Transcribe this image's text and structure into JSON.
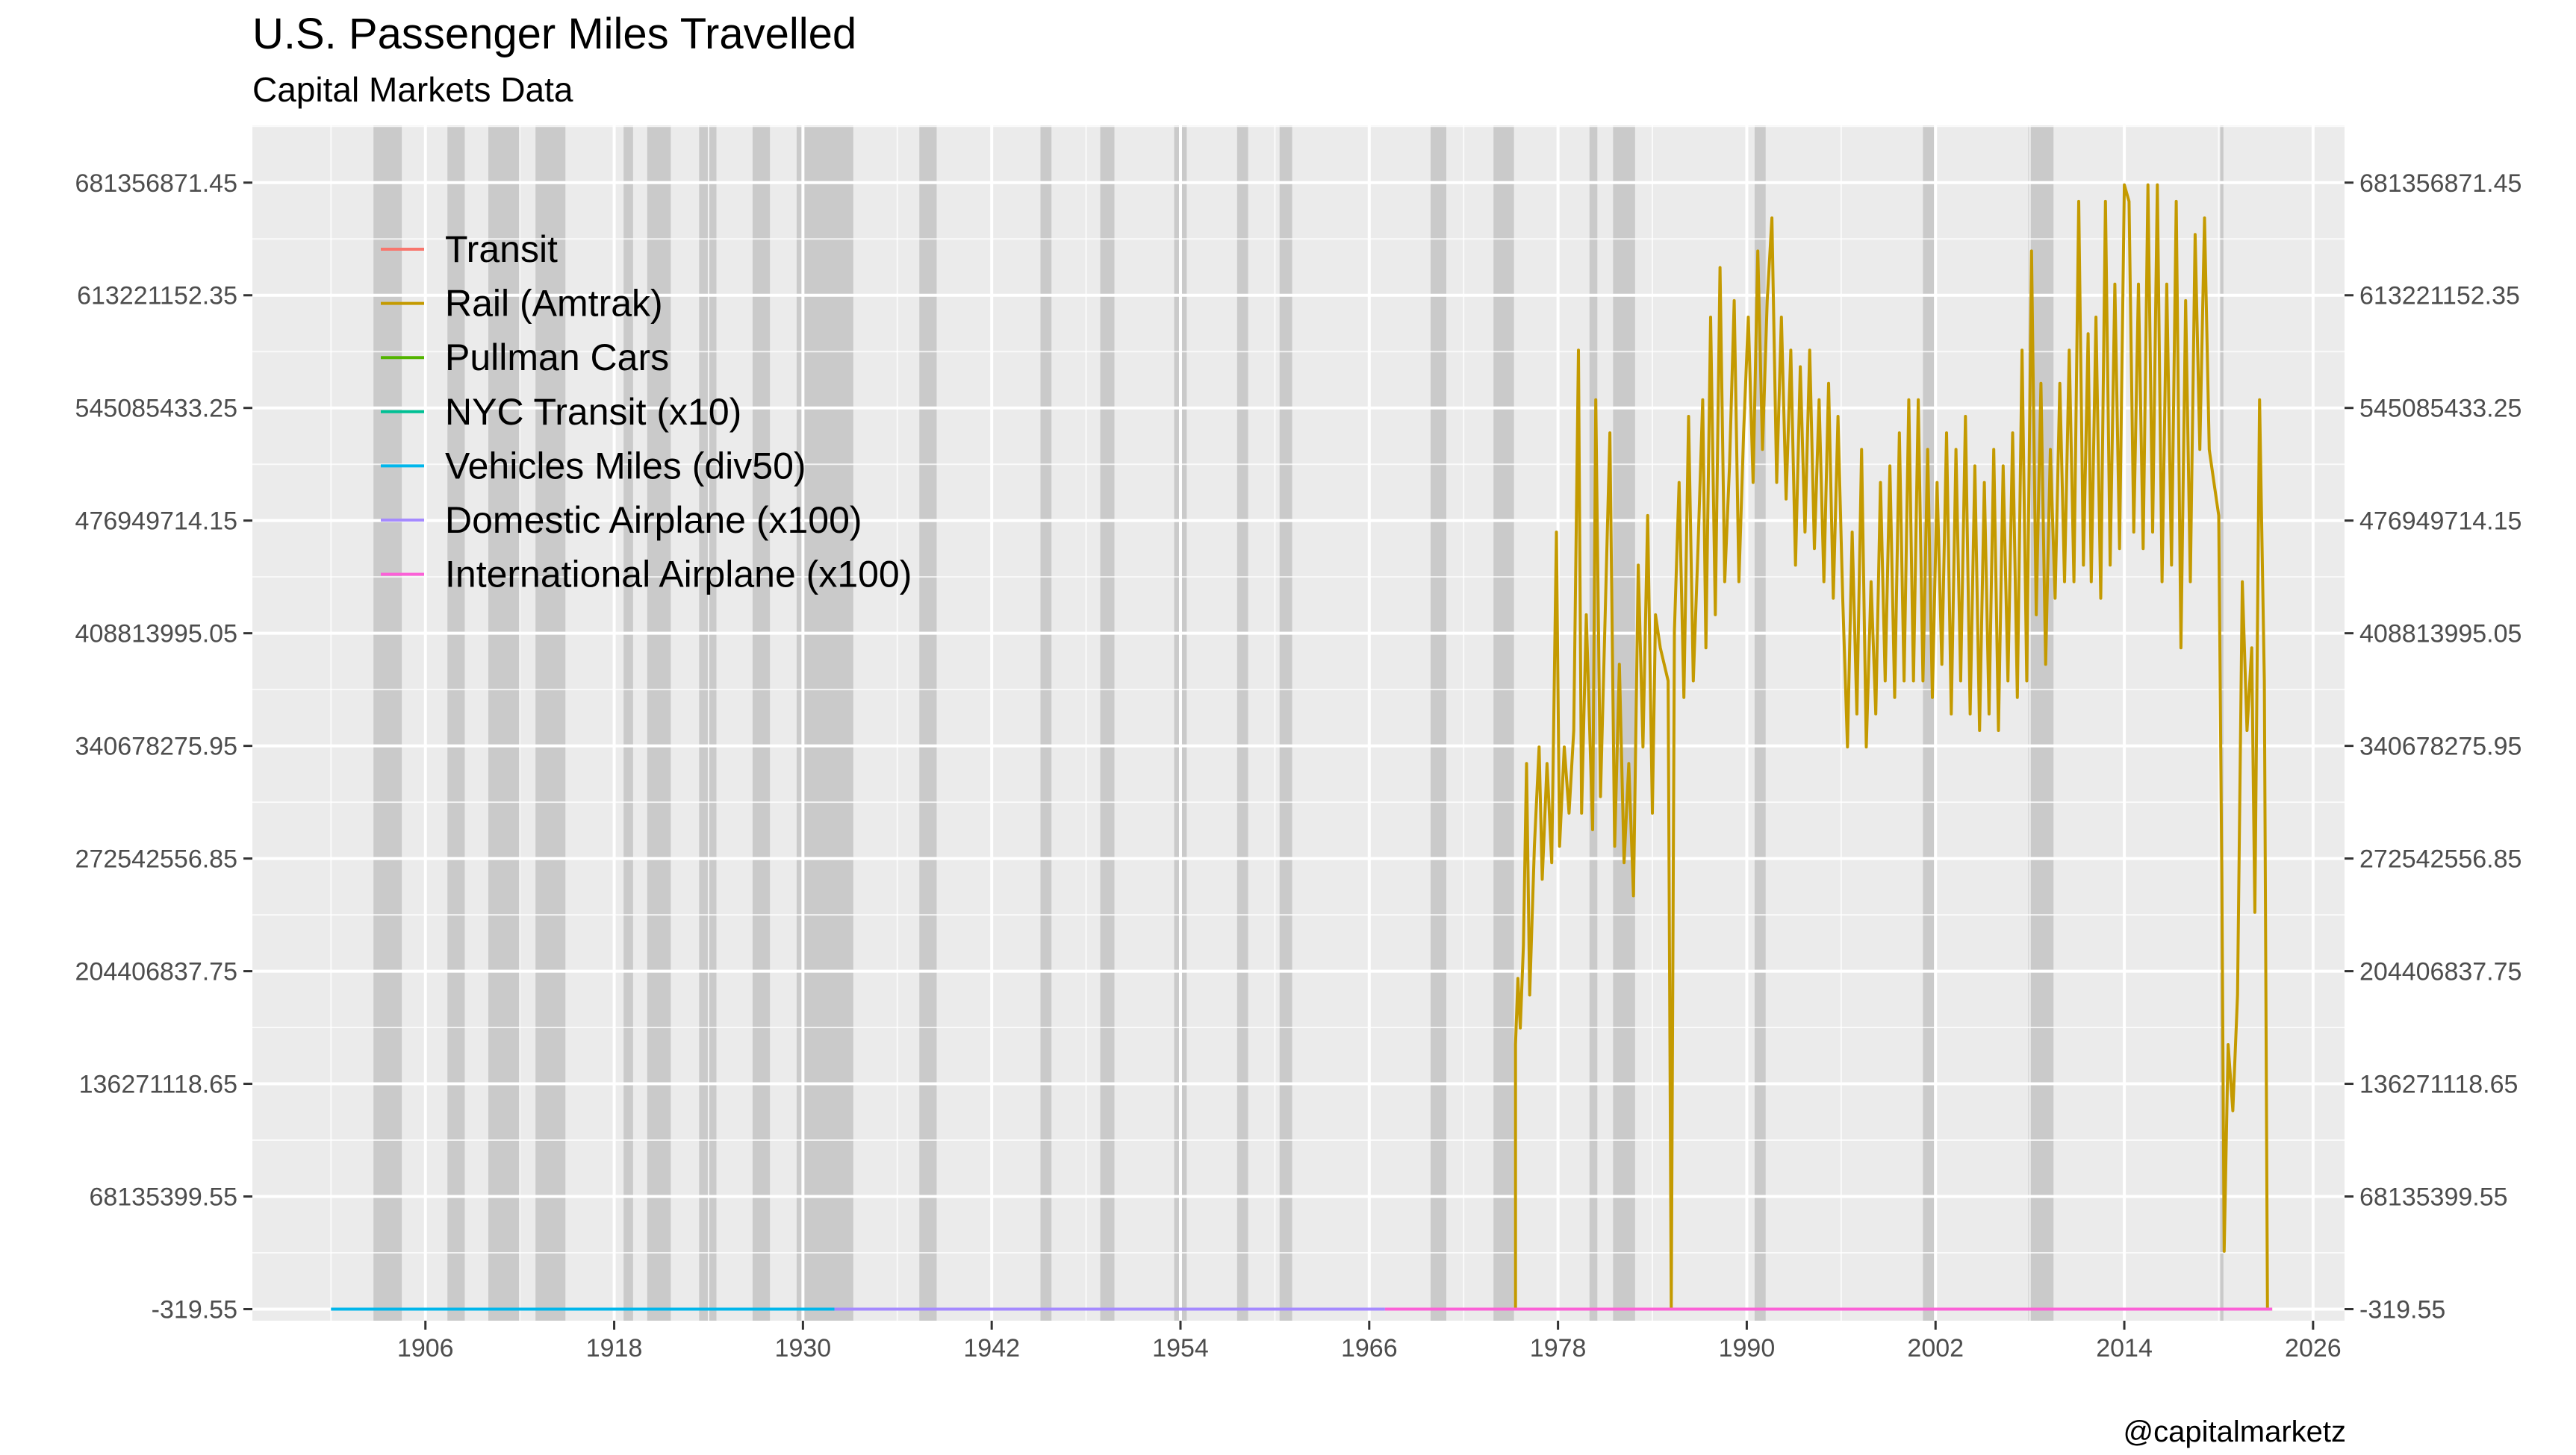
{
  "chart_data": {
    "type": "line",
    "title": "U.S. Passenger Miles Travelled",
    "subtitle": "Capital Markets Data",
    "caption": "@capitalmarketz",
    "xlabel": "",
    "ylabel": "",
    "x_type": "year",
    "xlim": [
      1895,
      2028
    ],
    "ylim": [
      -7000000,
      716000000
    ],
    "x_ticks": [
      1906,
      1918,
      1930,
      1942,
      1954,
      1966,
      1978,
      1990,
      2002,
      2014,
      2026
    ],
    "y_ticks": [
      -319.55,
      68135399.55,
      136271118.65,
      204406837.75,
      272542556.85,
      340678275.95,
      408813995.05,
      476949714.15,
      545085433.25,
      613221152.35,
      681356871.45
    ],
    "y_tick_labels": [
      "-319.55",
      "68135399.55",
      "136271118.65",
      "204406837.75",
      "272542556.85",
      "340678275.95",
      "408813995.05",
      "476949714.15",
      "545085433.25",
      "613221152.35",
      "681356871.45"
    ],
    "secondary_y_axis": true,
    "grid": true,
    "legend_position": "top-left-inside",
    "recession_bands": [
      [
        1902.7,
        1904.5
      ],
      [
        1907.4,
        1908.5
      ],
      [
        1910.0,
        1912.0
      ],
      [
        1913.0,
        1914.9
      ],
      [
        1918.6,
        1919.2
      ],
      [
        1920.1,
        1921.6
      ],
      [
        1923.4,
        1924.5
      ],
      [
        1926.8,
        1927.9
      ],
      [
        1929.6,
        1933.2
      ],
      [
        1937.4,
        1938.5
      ],
      [
        1945.1,
        1945.8
      ],
      [
        1948.9,
        1949.8
      ],
      [
        1953.6,
        1954.4
      ],
      [
        1957.6,
        1958.3
      ],
      [
        1960.3,
        1961.1
      ],
      [
        1969.9,
        1970.9
      ],
      [
        1973.9,
        1975.2
      ],
      [
        1980.0,
        1980.5
      ],
      [
        1981.5,
        1982.9
      ],
      [
        1990.5,
        1991.2
      ],
      [
        2001.2,
        2001.9
      ],
      [
        2007.9,
        2009.5
      ],
      [
        2020.1,
        2020.3
      ]
    ],
    "series": [
      {
        "name": "Transit",
        "color": "#F8766D",
        "points": []
      },
      {
        "name": "Rail (Amtrak)",
        "color": "#C49A00",
        "points": [
          [
            1974.0,
            0
          ],
          [
            1975.3,
            0
          ],
          [
            1975.3,
            160000000
          ],
          [
            1975.45,
            200000000
          ],
          [
            1975.6,
            170000000
          ],
          [
            1975.8,
            220000000
          ],
          [
            1976.0,
            330000000
          ],
          [
            1976.2,
            190000000
          ],
          [
            1976.5,
            280000000
          ],
          [
            1976.8,
            340000000
          ],
          [
            1977.0,
            260000000
          ],
          [
            1977.3,
            330000000
          ],
          [
            1977.6,
            270000000
          ],
          [
            1977.9,
            470000000
          ],
          [
            1978.1,
            280000000
          ],
          [
            1978.4,
            340000000
          ],
          [
            1978.7,
            300000000
          ],
          [
            1979.0,
            350000000
          ],
          [
            1979.3,
            580000000
          ],
          [
            1979.5,
            300000000
          ],
          [
            1979.8,
            420000000
          ],
          [
            1980.2,
            290000000
          ],
          [
            1980.4,
            550000000
          ],
          [
            1980.7,
            310000000
          ],
          [
            1981.0,
            420000000
          ],
          [
            1981.3,
            530000000
          ],
          [
            1981.6,
            280000000
          ],
          [
            1981.9,
            390000000
          ],
          [
            1982.2,
            270000000
          ],
          [
            1982.5,
            330000000
          ],
          [
            1982.8,
            250000000
          ],
          [
            1983.1,
            450000000
          ],
          [
            1983.4,
            340000000
          ],
          [
            1983.7,
            480000000
          ],
          [
            1984.0,
            300000000
          ],
          [
            1984.2,
            420000000
          ],
          [
            1984.5,
            400000000
          ],
          [
            1985.0,
            380000000
          ],
          [
            1985.2,
            0
          ],
          [
            1985.4,
            410000000
          ],
          [
            1985.7,
            500000000
          ],
          [
            1986.0,
            370000000
          ],
          [
            1986.3,
            540000000
          ],
          [
            1986.6,
            380000000
          ],
          [
            1986.9,
            460000000
          ],
          [
            1987.2,
            550000000
          ],
          [
            1987.4,
            400000000
          ],
          [
            1987.7,
            600000000
          ],
          [
            1988.0,
            420000000
          ],
          [
            1988.3,
            630000000
          ],
          [
            1988.6,
            440000000
          ],
          [
            1988.9,
            510000000
          ],
          [
            1989.2,
            610000000
          ],
          [
            1989.5,
            440000000
          ],
          [
            1989.8,
            530000000
          ],
          [
            1990.1,
            600000000
          ],
          [
            1990.4,
            500000000
          ],
          [
            1990.7,
            640000000
          ],
          [
            1991.0,
            520000000
          ],
          [
            1991.3,
            610000000
          ],
          [
            1991.6,
            660000000
          ],
          [
            1991.9,
            500000000
          ],
          [
            1992.2,
            600000000
          ],
          [
            1992.5,
            490000000
          ],
          [
            1992.8,
            580000000
          ],
          [
            1993.1,
            450000000
          ],
          [
            1993.4,
            570000000
          ],
          [
            1993.7,
            470000000
          ],
          [
            1994.0,
            580000000
          ],
          [
            1994.3,
            460000000
          ],
          [
            1994.6,
            550000000
          ],
          [
            1994.9,
            440000000
          ],
          [
            1995.2,
            560000000
          ],
          [
            1995.5,
            430000000
          ],
          [
            1995.8,
            540000000
          ],
          [
            1996.1,
            430000000
          ],
          [
            1996.4,
            340000000
          ],
          [
            1996.7,
            470000000
          ],
          [
            1997.0,
            360000000
          ],
          [
            1997.3,
            520000000
          ],
          [
            1997.6,
            340000000
          ],
          [
            1997.9,
            440000000
          ],
          [
            1998.2,
            360000000
          ],
          [
            1998.5,
            500000000
          ],
          [
            1998.8,
            380000000
          ],
          [
            1999.1,
            510000000
          ],
          [
            1999.4,
            370000000
          ],
          [
            1999.7,
            530000000
          ],
          [
            2000.0,
            380000000
          ],
          [
            2000.3,
            550000000
          ],
          [
            2000.6,
            380000000
          ],
          [
            2000.9,
            550000000
          ],
          [
            2001.2,
            380000000
          ],
          [
            2001.5,
            520000000
          ],
          [
            2001.8,
            370000000
          ],
          [
            2002.1,
            500000000
          ],
          [
            2002.4,
            390000000
          ],
          [
            2002.7,
            530000000
          ],
          [
            2003.0,
            360000000
          ],
          [
            2003.3,
            520000000
          ],
          [
            2003.6,
            380000000
          ],
          [
            2003.9,
            540000000
          ],
          [
            2004.2,
            360000000
          ],
          [
            2004.5,
            510000000
          ],
          [
            2004.8,
            350000000
          ],
          [
            2005.1,
            500000000
          ],
          [
            2005.4,
            360000000
          ],
          [
            2005.7,
            520000000
          ],
          [
            2006.0,
            350000000
          ],
          [
            2006.3,
            510000000
          ],
          [
            2006.6,
            380000000
          ],
          [
            2006.9,
            530000000
          ],
          [
            2007.2,
            370000000
          ],
          [
            2007.5,
            580000000
          ],
          [
            2007.8,
            380000000
          ],
          [
            2008.1,
            640000000
          ],
          [
            2008.4,
            420000000
          ],
          [
            2008.7,
            560000000
          ],
          [
            2009.0,
            390000000
          ],
          [
            2009.3,
            520000000
          ],
          [
            2009.6,
            430000000
          ],
          [
            2009.9,
            560000000
          ],
          [
            2010.2,
            440000000
          ],
          [
            2010.5,
            580000000
          ],
          [
            2010.8,
            440000000
          ],
          [
            2011.1,
            670000000
          ],
          [
            2011.4,
            450000000
          ],
          [
            2011.7,
            590000000
          ],
          [
            2011.9,
            440000000
          ],
          [
            2012.2,
            600000000
          ],
          [
            2012.5,
            430000000
          ],
          [
            2012.8,
            670000000
          ],
          [
            2013.1,
            450000000
          ],
          [
            2013.4,
            620000000
          ],
          [
            2013.7,
            460000000
          ],
          [
            2014.0,
            680000000
          ],
          [
            2014.3,
            670000000
          ],
          [
            2014.6,
            470000000
          ],
          [
            2014.9,
            620000000
          ],
          [
            2015.2,
            460000000
          ],
          [
            2015.5,
            680000000
          ],
          [
            2015.8,
            470000000
          ],
          [
            2016.1,
            680000000
          ],
          [
            2016.4,
            440000000
          ],
          [
            2016.7,
            620000000
          ],
          [
            2017.0,
            450000000
          ],
          [
            2017.3,
            670000000
          ],
          [
            2017.6,
            400000000
          ],
          [
            2017.9,
            610000000
          ],
          [
            2018.2,
            440000000
          ],
          [
            2018.5,
            650000000
          ],
          [
            2018.8,
            520000000
          ],
          [
            2019.1,
            660000000
          ],
          [
            2019.4,
            520000000
          ],
          [
            2019.7,
            500000000
          ],
          [
            2020.0,
            480000000
          ],
          [
            2020.2,
            260000000
          ],
          [
            2020.35,
            35000000
          ],
          [
            2020.6,
            160000000
          ],
          [
            2020.9,
            120000000
          ],
          [
            2021.2,
            190000000
          ],
          [
            2021.5,
            440000000
          ],
          [
            2021.8,
            350000000
          ],
          [
            2022.1,
            400000000
          ],
          [
            2022.3,
            240000000
          ],
          [
            2022.6,
            550000000
          ],
          [
            2022.9,
            380000000
          ],
          [
            2023.1,
            0
          ],
          [
            2023.4,
            0
          ]
        ]
      },
      {
        "name": "Pullman Cars",
        "color": "#53B400",
        "points": []
      },
      {
        "name": "NYC Transit (x10)",
        "color": "#00C094",
        "points": []
      },
      {
        "name": "Vehicles Miles (div50)",
        "color": "#00B6EB",
        "points": [
          [
            1900.0,
            0
          ],
          [
            1932.0,
            0
          ]
        ]
      },
      {
        "name": "Domestic Airplane (x100)",
        "color": "#A58AFF",
        "points": [
          [
            1932.0,
            0
          ],
          [
            1967.0,
            0
          ]
        ]
      },
      {
        "name": "International Airplane (x100)",
        "color": "#FB61D7",
        "points": [
          [
            1967.0,
            0
          ],
          [
            2023.4,
            0
          ]
        ]
      }
    ]
  }
}
